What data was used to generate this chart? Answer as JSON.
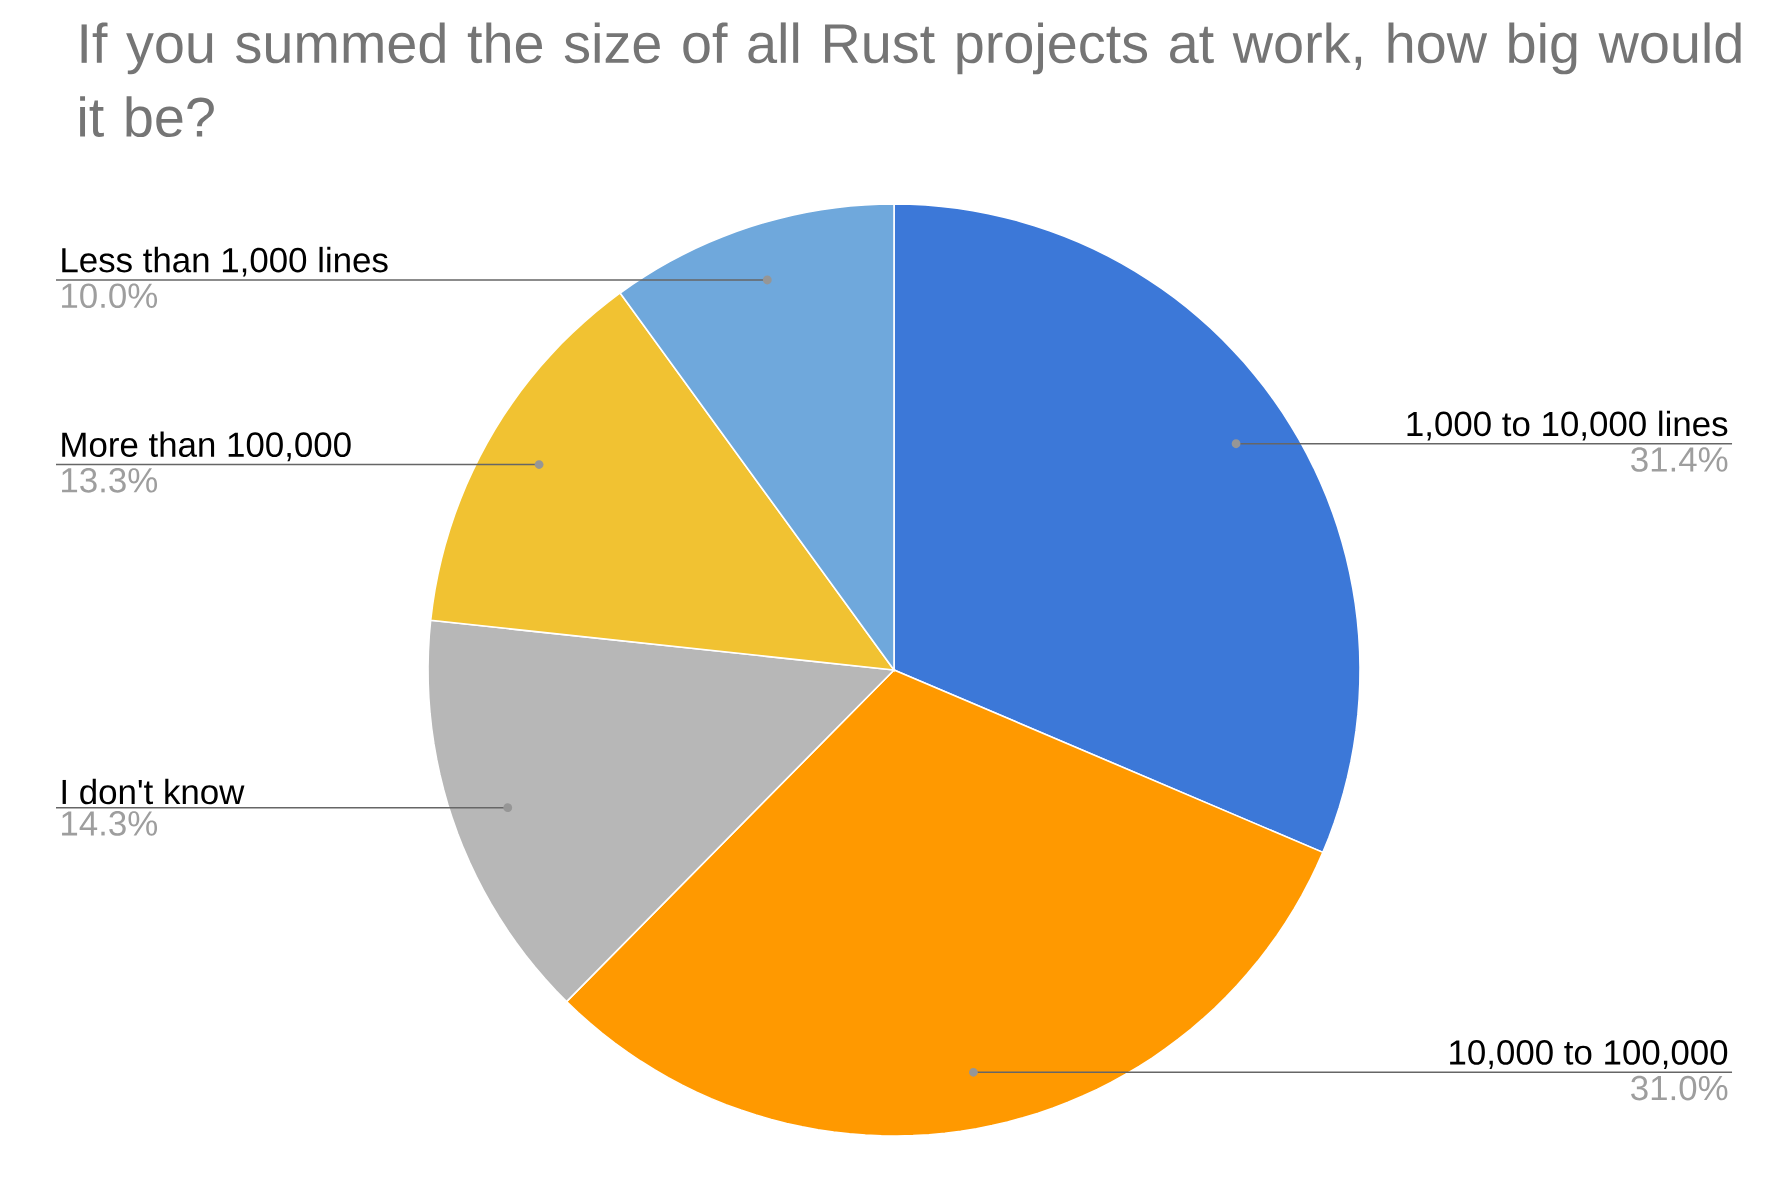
{
  "chart_data": {
    "type": "pie",
    "title": "If you summed the size of all Rust projects at work, how big would it be?",
    "categories": [
      "1,000 to 10,000 lines",
      "10,000 to 100,000",
      "I don't know",
      "More than 100,000",
      "Less than 1,000 lines"
    ],
    "values": [
      31.4,
      31.0,
      14.3,
      13.3,
      10.0
    ],
    "colors": [
      "#3c78d8",
      "#ff9900",
      "#b7b7b7",
      "#f1c232",
      "#6fa8dc"
    ],
    "value_labels": [
      "31.4%",
      "31.0%",
      "14.3%",
      "13.3%",
      "10.0%"
    ]
  }
}
